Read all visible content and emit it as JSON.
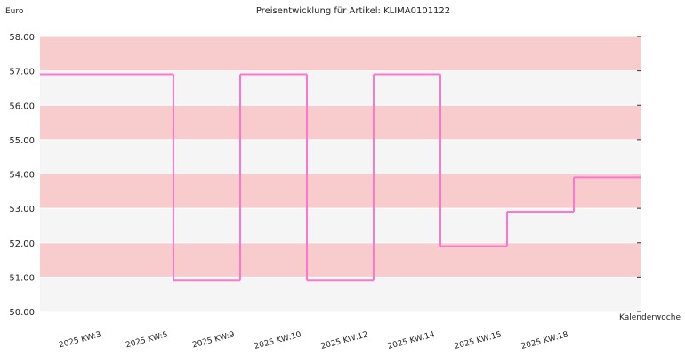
{
  "chart_data": {
    "type": "step",
    "title": "Preisentwicklung für Artikel: KLIMA0101122",
    "y_label": "Euro",
    "x_label": "Kalenderwoche",
    "categories": [
      "2025 KW:3",
      "2025 KW:5",
      "2025 KW:9",
      "2025 KW:10",
      "2025 KW:12",
      "2025 KW:14",
      "2025 KW:15",
      "2025 KW:18"
    ],
    "values": [
      56.9,
      50.9,
      56.9,
      50.9,
      56.9,
      51.9,
      52.9,
      53.9
    ],
    "color": "#ff77cc",
    "band_colors": [
      "#f8cccc",
      "#f5f5f5"
    ],
    "ylim": [
      50,
      58
    ],
    "yticks": [
      {
        "value": 50,
        "label": "50.00"
      },
      {
        "value": 51,
        "label": "51.00"
      },
      {
        "value": 52,
        "label": "52.00"
      },
      {
        "value": 53,
        "label": "53.00"
      },
      {
        "value": 54,
        "label": "54.00"
      },
      {
        "value": 55,
        "label": "55.00"
      },
      {
        "value": 56,
        "label": "56.00"
      },
      {
        "value": 57,
        "label": "57.00"
      },
      {
        "value": 58,
        "label": "58.00"
      }
    ]
  }
}
